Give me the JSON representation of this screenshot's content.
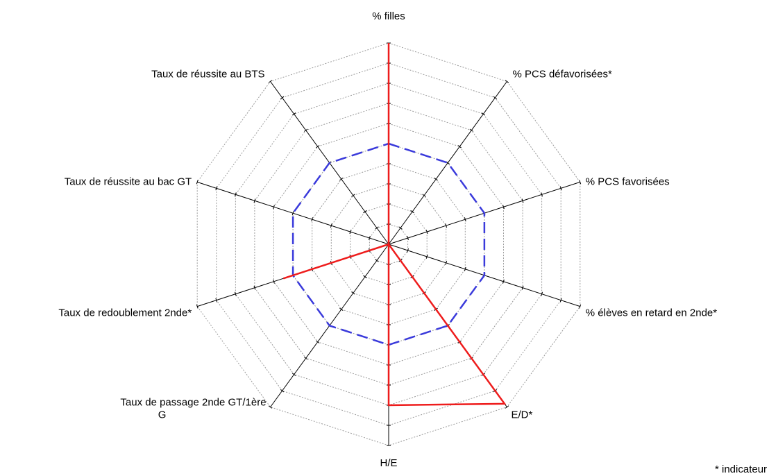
{
  "chart_data": {
    "type": "radar",
    "axes": [
      "% filles",
      "% PCS défavorisées*",
      "% PCS favorisées",
      "% élèves en retard en 2nde*",
      "E/D*",
      "H/E",
      "Taux de passage 2nde GT/1ère G",
      "Taux de redoublement 2nde*",
      "Taux de réussite au bac GT",
      "Taux de réussite au BTS"
    ],
    "axis_labels_display": [
      [
        "% filles"
      ],
      [
        "% PCS défavorisées*"
      ],
      [
        "% PCS favorisées"
      ],
      [
        "% élèves en retard en 2nde*"
      ],
      [
        "E/D*"
      ],
      [
        "H/E"
      ],
      [
        "Taux de passage 2nde GT/1ère",
        "G"
      ],
      [
        "Taux de redoublement 2nde*"
      ],
      [
        "Taux de réussite au bac GT"
      ],
      [
        "Taux de réussite au BTS"
      ]
    ],
    "rlim": [
      0,
      10
    ],
    "rings": 10,
    "series": [
      {
        "color": "#3a3adb",
        "dash": "dashed",
        "values": [
          5,
          5,
          5,
          5,
          5,
          5,
          5,
          5,
          5,
          5
        ]
      },
      {
        "color": "#ee1c1c",
        "dash": "solid",
        "values": [
          10,
          0,
          0,
          0,
          9.8,
          8,
          0,
          5.5,
          0,
          0
        ]
      }
    ],
    "gridlines": true
  },
  "footnote": "* indicateur"
}
